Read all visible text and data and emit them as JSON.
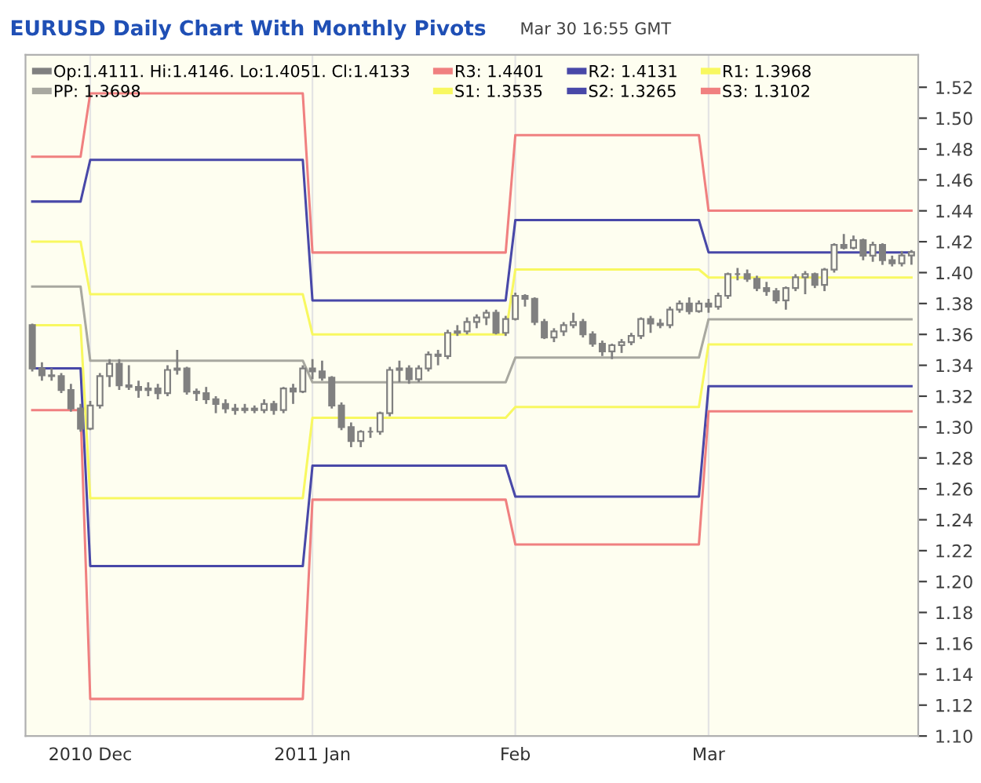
{
  "chart_data": {
    "type": "candlestick",
    "title": "EURUSD Daily Chart With Monthly Pivots",
    "subtitle": "Mar 30 16:55 GMT",
    "categories": [
      null,
      null,
      null,
      null,
      null,
      null,
      "2010 Dec",
      null,
      null,
      null,
      null,
      null,
      null,
      null,
      null,
      null,
      null,
      null,
      null,
      null,
      null,
      null,
      null,
      null,
      null,
      null,
      null,
      null,
      null,
      "2011 Jan",
      null,
      null,
      null,
      null,
      null,
      null,
      null,
      null,
      null,
      null,
      null,
      null,
      null,
      null,
      null,
      null,
      null,
      null,
      null,
      null,
      "Feb",
      null,
      null,
      null,
      null,
      null,
      null,
      null,
      null,
      null,
      null,
      null,
      null,
      null,
      null,
      null,
      null,
      null,
      null,
      null,
      "Mar",
      null,
      null,
      null,
      null,
      null,
      null,
      null,
      null,
      null,
      null,
      null,
      null,
      null,
      null,
      null,
      null,
      null,
      null,
      null,
      null,
      null
    ],
    "ylim": [
      1.1,
      1.541
    ],
    "yticks": [
      {
        "value": 1.1,
        "label": "1.10"
      },
      {
        "value": 1.12,
        "label": "1.12"
      },
      {
        "value": 1.14,
        "label": "1.14"
      },
      {
        "value": 1.16,
        "label": "1.16"
      },
      {
        "value": 1.18,
        "label": "1.18"
      },
      {
        "value": 1.2,
        "label": "1.20"
      },
      {
        "value": 1.22,
        "label": "1.22"
      },
      {
        "value": 1.24,
        "label": "1.24"
      },
      {
        "value": 1.26,
        "label": "1.26"
      },
      {
        "value": 1.28,
        "label": "1.28"
      },
      {
        "value": 1.3,
        "label": "1.30"
      },
      {
        "value": 1.32,
        "label": "1.32"
      },
      {
        "value": 1.34,
        "label": "1.34"
      },
      {
        "value": 1.36,
        "label": "1.36"
      },
      {
        "value": 1.38,
        "label": "1.38"
      },
      {
        "value": 1.4,
        "label": "1.40"
      },
      {
        "value": 1.42,
        "label": "1.42"
      },
      {
        "value": 1.44,
        "label": "1.44"
      },
      {
        "value": 1.46,
        "label": "1.46"
      },
      {
        "value": 1.48,
        "label": "1.48"
      },
      {
        "value": 1.5,
        "label": "1.50"
      },
      {
        "value": 1.52,
        "label": "1.52"
      }
    ],
    "grid": "x",
    "legend": "top",
    "annotations": [
      "Op:1.4111. Hi:1.4146. Lo:1.4051. Cl:1.4133"
    ],
    "color": "#808080",
    "ohlc": [
      [
        1.366,
        1.367,
        1.336,
        1.338
      ],
      [
        1.338,
        1.342,
        1.33,
        1.3335
      ],
      [
        1.3335,
        1.338,
        1.33,
        1.333
      ],
      [
        1.333,
        1.335,
        1.322,
        1.324
      ],
      [
        1.324,
        1.328,
        1.31,
        1.312
      ],
      [
        1.312,
        1.315,
        1.297,
        1.299
      ],
      [
        1.299,
        1.317,
        1.298,
        1.314
      ],
      [
        1.314,
        1.335,
        1.312,
        1.333
      ],
      [
        1.333,
        1.344,
        1.326,
        1.341
      ],
      [
        1.341,
        1.344,
        1.324,
        1.327
      ],
      [
        1.327,
        1.34,
        1.324,
        1.326
      ],
      [
        1.326,
        1.33,
        1.319,
        1.324
      ],
      [
        1.324,
        1.329,
        1.32,
        1.325
      ],
      [
        1.325,
        1.328,
        1.318,
        1.322
      ],
      [
        1.322,
        1.34,
        1.32,
        1.337
      ],
      [
        1.337,
        1.35,
        1.334,
        1.338
      ],
      [
        1.338,
        1.339,
        1.321,
        1.323
      ],
      [
        1.323,
        1.325,
        1.317,
        1.322
      ],
      [
        1.322,
        1.326,
        1.315,
        1.318
      ],
      [
        1.318,
        1.32,
        1.309,
        1.315
      ],
      [
        1.315,
        1.318,
        1.309,
        1.312
      ],
      [
        1.312,
        1.315,
        1.308,
        1.311
      ],
      [
        1.311,
        1.315,
        1.309,
        1.312
      ],
      [
        1.312,
        1.314,
        1.309,
        1.311
      ],
      [
        1.311,
        1.318,
        1.309,
        1.315
      ],
      [
        1.315,
        1.317,
        1.308,
        1.311
      ],
      [
        1.311,
        1.326,
        1.309,
        1.325
      ],
      [
        1.325,
        1.328,
        1.315,
        1.323
      ],
      [
        1.323,
        1.34,
        1.322,
        1.338
      ],
      [
        1.338,
        1.344,
        1.331,
        1.336
      ],
      [
        1.336,
        1.343,
        1.33,
        1.332
      ],
      [
        1.332,
        1.333,
        1.312,
        1.314
      ],
      [
        1.314,
        1.316,
        1.298,
        1.3
      ],
      [
        1.3,
        1.303,
        1.287,
        1.291
      ],
      [
        1.291,
        1.298,
        1.287,
        1.297
      ],
      [
        1.297,
        1.3,
        1.293,
        1.297
      ],
      [
        1.297,
        1.31,
        1.295,
        1.309
      ],
      [
        1.309,
        1.339,
        1.307,
        1.337
      ],
      [
        1.337,
        1.343,
        1.329,
        1.338
      ],
      [
        1.338,
        1.34,
        1.328,
        1.331
      ],
      [
        1.331,
        1.34,
        1.329,
        1.338
      ],
      [
        1.338,
        1.349,
        1.336,
        1.347
      ],
      [
        1.347,
        1.35,
        1.34,
        1.346
      ],
      [
        1.346,
        1.363,
        1.344,
        1.361
      ],
      [
        1.361,
        1.366,
        1.359,
        1.362
      ],
      [
        1.362,
        1.371,
        1.36,
        1.368
      ],
      [
        1.368,
        1.373,
        1.364,
        1.371
      ],
      [
        1.371,
        1.376,
        1.366,
        1.374
      ],
      [
        1.374,
        1.376,
        1.36,
        1.361
      ],
      [
        1.361,
        1.372,
        1.359,
        1.37
      ],
      [
        1.37,
        1.387,
        1.369,
        1.385
      ],
      [
        1.385,
        1.386,
        1.378,
        1.383
      ],
      [
        1.383,
        1.384,
        1.366,
        1.368
      ],
      [
        1.368,
        1.37,
        1.357,
        1.358
      ],
      [
        1.358,
        1.364,
        1.355,
        1.362
      ],
      [
        1.362,
        1.368,
        1.359,
        1.366
      ],
      [
        1.366,
        1.374,
        1.364,
        1.368
      ],
      [
        1.368,
        1.37,
        1.358,
        1.36
      ],
      [
        1.36,
        1.362,
        1.352,
        1.354
      ],
      [
        1.354,
        1.356,
        1.346,
        1.349
      ],
      [
        1.349,
        1.354,
        1.344,
        1.353
      ],
      [
        1.353,
        1.357,
        1.348,
        1.355
      ],
      [
        1.355,
        1.361,
        1.353,
        1.359
      ],
      [
        1.359,
        1.371,
        1.357,
        1.37
      ],
      [
        1.37,
        1.372,
        1.361,
        1.367
      ],
      [
        1.367,
        1.37,
        1.364,
        1.366
      ],
      [
        1.366,
        1.378,
        1.364,
        1.376
      ],
      [
        1.376,
        1.382,
        1.374,
        1.38
      ],
      [
        1.38,
        1.384,
        1.373,
        1.375
      ],
      [
        1.375,
        1.382,
        1.374,
        1.38
      ],
      [
        1.38,
        1.383,
        1.374,
        1.378
      ],
      [
        1.378,
        1.387,
        1.376,
        1.385
      ],
      [
        1.385,
        1.4,
        1.383,
        1.399
      ],
      [
        1.399,
        1.403,
        1.395,
        1.399
      ],
      [
        1.399,
        1.402,
        1.394,
        1.396
      ],
      [
        1.396,
        1.398,
        1.388,
        1.39
      ],
      [
        1.39,
        1.394,
        1.385,
        1.388
      ],
      [
        1.388,
        1.39,
        1.38,
        1.382
      ],
      [
        1.382,
        1.391,
        1.376,
        1.39
      ],
      [
        1.39,
        1.399,
        1.388,
        1.397
      ],
      [
        1.397,
        1.401,
        1.386,
        1.399
      ],
      [
        1.399,
        1.4,
        1.39,
        1.392
      ],
      [
        1.392,
        1.403,
        1.388,
        1.402
      ],
      [
        1.402,
        1.419,
        1.4,
        1.418
      ],
      [
        1.418,
        1.425,
        1.415,
        1.416
      ],
      [
        1.416,
        1.424,
        1.415,
        1.421
      ],
      [
        1.421,
        1.422,
        1.408,
        1.411
      ],
      [
        1.411,
        1.42,
        1.407,
        1.418
      ],
      [
        1.418,
        1.419,
        1.405,
        1.408
      ],
      [
        1.408,
        1.411,
        1.404,
        1.406
      ],
      [
        1.406,
        1.414,
        1.404,
        1.4111
      ],
      [
        1.4111,
        1.4146,
        1.4051,
        1.4133
      ]
    ],
    "series": [
      {
        "type": "line",
        "name": "R3: 1.4401",
        "color": "#f08080",
        "values": [
          1.475,
          1.475,
          1.475,
          1.475,
          1.475,
          1.475,
          1.516,
          1.516,
          1.516,
          1.516,
          1.516,
          1.516,
          1.516,
          1.516,
          1.516,
          1.516,
          1.516,
          1.516,
          1.516,
          1.516,
          1.516,
          1.516,
          1.516,
          1.516,
          1.516,
          1.516,
          1.516,
          1.516,
          1.516,
          1.413,
          1.413,
          1.413,
          1.413,
          1.413,
          1.413,
          1.413,
          1.413,
          1.413,
          1.413,
          1.413,
          1.413,
          1.413,
          1.413,
          1.413,
          1.413,
          1.413,
          1.413,
          1.413,
          1.413,
          1.413,
          1.489,
          1.489,
          1.489,
          1.489,
          1.489,
          1.489,
          1.489,
          1.489,
          1.489,
          1.489,
          1.489,
          1.489,
          1.489,
          1.489,
          1.489,
          1.489,
          1.489,
          1.489,
          1.489,
          1.489,
          1.4401,
          1.4401,
          1.4401,
          1.4401,
          1.4401,
          1.4401,
          1.4401,
          1.4401,
          1.4401,
          1.4401,
          1.4401,
          1.4401,
          1.4401,
          1.4401,
          1.4401,
          1.4401,
          1.4401,
          1.4401,
          1.4401,
          1.4401,
          1.4401,
          1.4401
        ]
      },
      {
        "type": "line",
        "name": "R2: 1.4131",
        "color": "#4848a8",
        "values": [
          1.446,
          1.446,
          1.446,
          1.446,
          1.446,
          1.446,
          1.473,
          1.473,
          1.473,
          1.473,
          1.473,
          1.473,
          1.473,
          1.473,
          1.473,
          1.473,
          1.473,
          1.473,
          1.473,
          1.473,
          1.473,
          1.473,
          1.473,
          1.473,
          1.473,
          1.473,
          1.473,
          1.473,
          1.473,
          1.382,
          1.382,
          1.382,
          1.382,
          1.382,
          1.382,
          1.382,
          1.382,
          1.382,
          1.382,
          1.382,
          1.382,
          1.382,
          1.382,
          1.382,
          1.382,
          1.382,
          1.382,
          1.382,
          1.382,
          1.382,
          1.434,
          1.434,
          1.434,
          1.434,
          1.434,
          1.434,
          1.434,
          1.434,
          1.434,
          1.434,
          1.434,
          1.434,
          1.434,
          1.434,
          1.434,
          1.434,
          1.434,
          1.434,
          1.434,
          1.434,
          1.4131,
          1.4131,
          1.4131,
          1.4131,
          1.4131,
          1.4131,
          1.4131,
          1.4131,
          1.4131,
          1.4131,
          1.4131,
          1.4131,
          1.4131,
          1.4131,
          1.4131,
          1.4131,
          1.4131,
          1.4131,
          1.4131,
          1.4131,
          1.4131,
          1.4131
        ]
      },
      {
        "type": "line",
        "name": "R1: 1.3968",
        "color": "#f8f860",
        "values": [
          1.42,
          1.42,
          1.42,
          1.42,
          1.42,
          1.42,
          1.386,
          1.386,
          1.386,
          1.386,
          1.386,
          1.386,
          1.386,
          1.386,
          1.386,
          1.386,
          1.386,
          1.386,
          1.386,
          1.386,
          1.386,
          1.386,
          1.386,
          1.386,
          1.386,
          1.386,
          1.386,
          1.386,
          1.386,
          1.36,
          1.36,
          1.36,
          1.36,
          1.36,
          1.36,
          1.36,
          1.36,
          1.36,
          1.36,
          1.36,
          1.36,
          1.36,
          1.36,
          1.36,
          1.36,
          1.36,
          1.36,
          1.36,
          1.36,
          1.36,
          1.402,
          1.402,
          1.402,
          1.402,
          1.402,
          1.402,
          1.402,
          1.402,
          1.402,
          1.402,
          1.402,
          1.402,
          1.402,
          1.402,
          1.402,
          1.402,
          1.402,
          1.402,
          1.402,
          1.402,
          1.3968,
          1.3968,
          1.3968,
          1.3968,
          1.3968,
          1.3968,
          1.3968,
          1.3968,
          1.3968,
          1.3968,
          1.3968,
          1.3968,
          1.3968,
          1.3968,
          1.3968,
          1.3968,
          1.3968,
          1.3968,
          1.3968,
          1.3968,
          1.3968,
          1.3968
        ]
      },
      {
        "type": "line",
        "name": "PP: 1.3698",
        "color": "#a8a8a0",
        "values": [
          1.391,
          1.391,
          1.391,
          1.391,
          1.391,
          1.391,
          1.343,
          1.343,
          1.343,
          1.343,
          1.343,
          1.343,
          1.343,
          1.343,
          1.343,
          1.343,
          1.343,
          1.343,
          1.343,
          1.343,
          1.343,
          1.343,
          1.343,
          1.343,
          1.343,
          1.343,
          1.343,
          1.343,
          1.343,
          1.329,
          1.329,
          1.329,
          1.329,
          1.329,
          1.329,
          1.329,
          1.329,
          1.329,
          1.329,
          1.329,
          1.329,
          1.329,
          1.329,
          1.329,
          1.329,
          1.329,
          1.329,
          1.329,
          1.329,
          1.329,
          1.345,
          1.345,
          1.345,
          1.345,
          1.345,
          1.345,
          1.345,
          1.345,
          1.345,
          1.345,
          1.345,
          1.345,
          1.345,
          1.345,
          1.345,
          1.345,
          1.345,
          1.345,
          1.345,
          1.345,
          1.3698,
          1.3698,
          1.3698,
          1.3698,
          1.3698,
          1.3698,
          1.3698,
          1.3698,
          1.3698,
          1.3698,
          1.3698,
          1.3698,
          1.3698,
          1.3698,
          1.3698,
          1.3698,
          1.3698,
          1.3698,
          1.3698,
          1.3698,
          1.3698,
          1.3698
        ]
      },
      {
        "type": "line",
        "name": "S1: 1.3535",
        "color": "#f8f860",
        "values": [
          1.366,
          1.366,
          1.366,
          1.366,
          1.366,
          1.366,
          1.254,
          1.254,
          1.254,
          1.254,
          1.254,
          1.254,
          1.254,
          1.254,
          1.254,
          1.254,
          1.254,
          1.254,
          1.254,
          1.254,
          1.254,
          1.254,
          1.254,
          1.254,
          1.254,
          1.254,
          1.254,
          1.254,
          1.254,
          1.306,
          1.306,
          1.306,
          1.306,
          1.306,
          1.306,
          1.306,
          1.306,
          1.306,
          1.306,
          1.306,
          1.306,
          1.306,
          1.306,
          1.306,
          1.306,
          1.306,
          1.306,
          1.306,
          1.306,
          1.306,
          1.313,
          1.313,
          1.313,
          1.313,
          1.313,
          1.313,
          1.313,
          1.313,
          1.313,
          1.313,
          1.313,
          1.313,
          1.313,
          1.313,
          1.313,
          1.313,
          1.313,
          1.313,
          1.313,
          1.313,
          1.3535,
          1.3535,
          1.3535,
          1.3535,
          1.3535,
          1.3535,
          1.3535,
          1.3535,
          1.3535,
          1.3535,
          1.3535,
          1.3535,
          1.3535,
          1.3535,
          1.3535,
          1.3535,
          1.3535,
          1.3535,
          1.3535,
          1.3535,
          1.3535,
          1.3535
        ]
      },
      {
        "type": "line",
        "name": "S2: 1.3265",
        "color": "#4848a8",
        "values": [
          1.338,
          1.338,
          1.338,
          1.338,
          1.338,
          1.338,
          1.21,
          1.21,
          1.21,
          1.21,
          1.21,
          1.21,
          1.21,
          1.21,
          1.21,
          1.21,
          1.21,
          1.21,
          1.21,
          1.21,
          1.21,
          1.21,
          1.21,
          1.21,
          1.21,
          1.21,
          1.21,
          1.21,
          1.21,
          1.275,
          1.275,
          1.275,
          1.275,
          1.275,
          1.275,
          1.275,
          1.275,
          1.275,
          1.275,
          1.275,
          1.275,
          1.275,
          1.275,
          1.275,
          1.275,
          1.275,
          1.275,
          1.275,
          1.275,
          1.275,
          1.255,
          1.255,
          1.255,
          1.255,
          1.255,
          1.255,
          1.255,
          1.255,
          1.255,
          1.255,
          1.255,
          1.255,
          1.255,
          1.255,
          1.255,
          1.255,
          1.255,
          1.255,
          1.255,
          1.255,
          1.3265,
          1.3265,
          1.3265,
          1.3265,
          1.3265,
          1.3265,
          1.3265,
          1.3265,
          1.3265,
          1.3265,
          1.3265,
          1.3265,
          1.3265,
          1.3265,
          1.3265,
          1.3265,
          1.3265,
          1.3265,
          1.3265,
          1.3265,
          1.3265,
          1.3265
        ]
      },
      {
        "type": "line",
        "name": "S3: 1.3102",
        "color": "#f08080",
        "values": [
          1.311,
          1.311,
          1.311,
          1.311,
          1.311,
          1.311,
          1.124,
          1.124,
          1.124,
          1.124,
          1.124,
          1.124,
          1.124,
          1.124,
          1.124,
          1.124,
          1.124,
          1.124,
          1.124,
          1.124,
          1.124,
          1.124,
          1.124,
          1.124,
          1.124,
          1.124,
          1.124,
          1.124,
          1.124,
          1.253,
          1.253,
          1.253,
          1.253,
          1.253,
          1.253,
          1.253,
          1.253,
          1.253,
          1.253,
          1.253,
          1.253,
          1.253,
          1.253,
          1.253,
          1.253,
          1.253,
          1.253,
          1.253,
          1.253,
          1.253,
          1.224,
          1.224,
          1.224,
          1.224,
          1.224,
          1.224,
          1.224,
          1.224,
          1.224,
          1.224,
          1.224,
          1.224,
          1.224,
          1.224,
          1.224,
          1.224,
          1.224,
          1.224,
          1.224,
          1.224,
          1.3102,
          1.3102,
          1.3102,
          1.3102,
          1.3102,
          1.3102,
          1.3102,
          1.3102,
          1.3102,
          1.3102,
          1.3102,
          1.3102,
          1.3102,
          1.3102,
          1.3102,
          1.3102,
          1.3102,
          1.3102,
          1.3102,
          1.3102,
          1.3102,
          1.3102
        ]
      }
    ]
  }
}
